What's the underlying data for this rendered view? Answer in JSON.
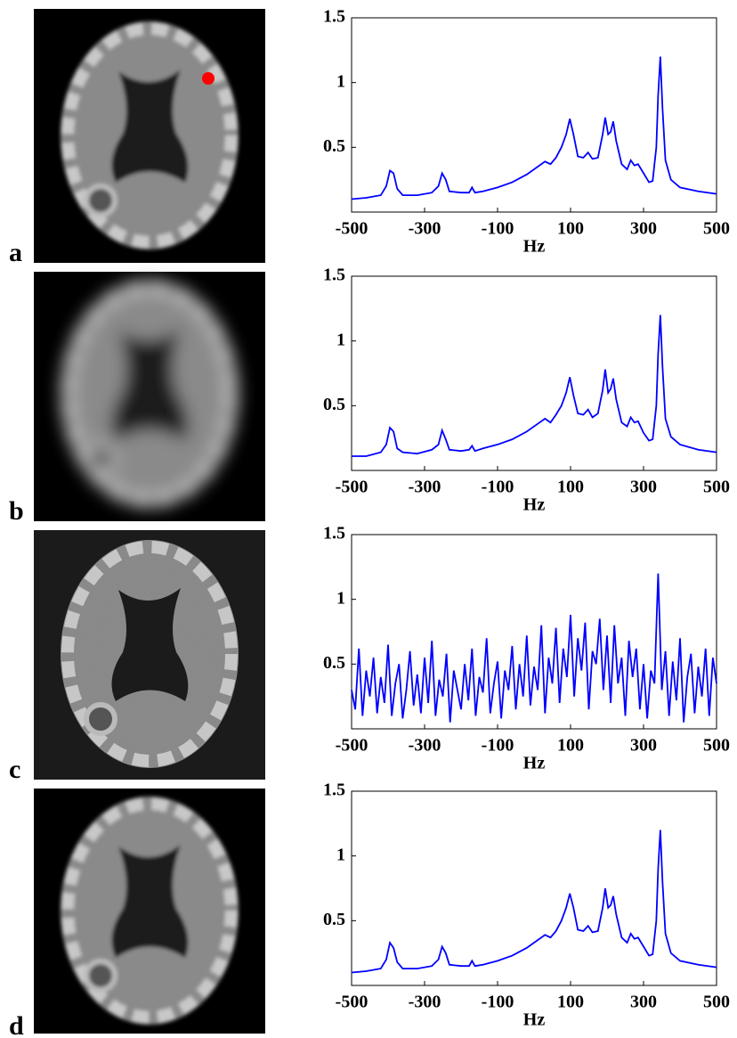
{
  "chart_data": [
    {
      "type": "line",
      "panel_label": "a",
      "xlabel": "Hz",
      "color": "#0000ff",
      "x": [
        -500,
        -460,
        -420,
        -405,
        -395,
        -385,
        -375,
        -360,
        -320,
        -280,
        -262,
        -252,
        -242,
        -232,
        -200,
        -178,
        -170,
        -162,
        -140,
        -100,
        -60,
        -20,
        10,
        30,
        45,
        60,
        75,
        88,
        98,
        108,
        120,
        135,
        148,
        160,
        175,
        188,
        195,
        203,
        210,
        217,
        225,
        240,
        255,
        265,
        275,
        285,
        300,
        315,
        325,
        335,
        340,
        346,
        352,
        360,
        375,
        400,
        450,
        500
      ],
      "values": [
        0.1,
        0.11,
        0.13,
        0.2,
        0.32,
        0.3,
        0.18,
        0.13,
        0.13,
        0.15,
        0.2,
        0.3,
        0.25,
        0.16,
        0.15,
        0.15,
        0.19,
        0.15,
        0.16,
        0.19,
        0.23,
        0.29,
        0.35,
        0.39,
        0.37,
        0.42,
        0.5,
        0.6,
        0.72,
        0.6,
        0.43,
        0.42,
        0.46,
        0.41,
        0.42,
        0.6,
        0.73,
        0.6,
        0.62,
        0.7,
        0.55,
        0.37,
        0.33,
        0.4,
        0.36,
        0.37,
        0.3,
        0.23,
        0.24,
        0.5,
        0.9,
        1.2,
        0.8,
        0.4,
        0.25,
        0.19,
        0.16,
        0.14
      ],
      "xlim": [
        -500,
        500
      ],
      "ylim": [
        0,
        1.5
      ],
      "xticks": [
        -500,
        -300,
        -100,
        100,
        300,
        500
      ],
      "yticks": [
        0.5,
        1,
        1.5
      ]
    },
    {
      "type": "line",
      "panel_label": "b",
      "xlabel": "Hz",
      "color": "#0000ff",
      "x": [
        -500,
        -460,
        -420,
        -405,
        -395,
        -385,
        -375,
        -360,
        -320,
        -280,
        -262,
        -252,
        -242,
        -232,
        -200,
        -178,
        -170,
        -162,
        -140,
        -100,
        -60,
        -20,
        10,
        30,
        45,
        60,
        75,
        88,
        98,
        108,
        120,
        135,
        148,
        160,
        175,
        188,
        195,
        203,
        210,
        217,
        225,
        240,
        255,
        265,
        275,
        285,
        300,
        315,
        325,
        335,
        340,
        346,
        352,
        360,
        375,
        400,
        450,
        500
      ],
      "values": [
        0.11,
        0.11,
        0.14,
        0.2,
        0.33,
        0.3,
        0.17,
        0.14,
        0.13,
        0.16,
        0.2,
        0.31,
        0.24,
        0.16,
        0.15,
        0.16,
        0.19,
        0.15,
        0.17,
        0.2,
        0.24,
        0.3,
        0.36,
        0.4,
        0.37,
        0.43,
        0.5,
        0.6,
        0.72,
        0.58,
        0.44,
        0.43,
        0.47,
        0.41,
        0.44,
        0.62,
        0.78,
        0.6,
        0.63,
        0.71,
        0.55,
        0.37,
        0.34,
        0.41,
        0.37,
        0.38,
        0.29,
        0.23,
        0.24,
        0.5,
        0.9,
        1.2,
        0.8,
        0.4,
        0.26,
        0.2,
        0.16,
        0.14
      ],
      "xlim": [
        -500,
        500
      ],
      "ylim": [
        0,
        1.5
      ],
      "xticks": [
        -500,
        -300,
        -100,
        100,
        300,
        500
      ],
      "yticks": [
        0.5,
        1,
        1.5
      ]
    },
    {
      "type": "line",
      "panel_label": "c",
      "xlabel": "Hz",
      "color": "#0000ff",
      "x": [
        -500,
        -490,
        -480,
        -470,
        -460,
        -450,
        -440,
        -430,
        -420,
        -410,
        -400,
        -390,
        -380,
        -370,
        -360,
        -350,
        -340,
        -330,
        -320,
        -310,
        -300,
        -290,
        -280,
        -270,
        -260,
        -250,
        -240,
        -230,
        -220,
        -210,
        -200,
        -190,
        -180,
        -170,
        -160,
        -150,
        -140,
        -130,
        -120,
        -110,
        -100,
        -90,
        -80,
        -70,
        -60,
        -50,
        -40,
        -30,
        -20,
        -10,
        0,
        10,
        20,
        30,
        40,
        50,
        60,
        70,
        80,
        90,
        100,
        110,
        120,
        130,
        140,
        150,
        160,
        170,
        180,
        190,
        200,
        210,
        220,
        230,
        240,
        250,
        260,
        270,
        280,
        290,
        300,
        310,
        320,
        330,
        340,
        350,
        360,
        370,
        380,
        390,
        400,
        410,
        420,
        430,
        440,
        450,
        460,
        470,
        480,
        490,
        500
      ],
      "values": [
        0.3,
        0.15,
        0.62,
        0.1,
        0.45,
        0.25,
        0.55,
        0.12,
        0.4,
        0.2,
        0.65,
        0.1,
        0.35,
        0.5,
        0.08,
        0.3,
        0.6,
        0.18,
        0.42,
        0.12,
        0.55,
        0.2,
        0.68,
        0.1,
        0.38,
        0.25,
        0.58,
        0.05,
        0.45,
        0.3,
        0.15,
        0.5,
        0.22,
        0.62,
        0.1,
        0.4,
        0.28,
        0.7,
        0.12,
        0.35,
        0.52,
        0.08,
        0.45,
        0.3,
        0.64,
        0.15,
        0.5,
        0.25,
        0.72,
        0.18,
        0.48,
        0.3,
        0.8,
        0.12,
        0.55,
        0.35,
        0.78,
        0.2,
        0.62,
        0.4,
        0.88,
        0.25,
        0.7,
        0.45,
        0.82,
        0.15,
        0.6,
        0.5,
        0.85,
        0.3,
        0.72,
        0.2,
        0.8,
        0.35,
        0.55,
        0.1,
        0.68,
        0.4,
        0.62,
        0.15,
        0.5,
        0.08,
        0.45,
        0.35,
        1.2,
        0.3,
        0.6,
        0.1,
        0.52,
        0.22,
        0.7,
        0.05,
        0.4,
        0.58,
        0.12,
        0.48,
        0.25,
        0.62,
        0.1,
        0.55,
        0.35
      ],
      "xlim": [
        -500,
        500
      ],
      "ylim": [
        0,
        1.5
      ],
      "xticks": [
        -500,
        -300,
        -100,
        100,
        300,
        500
      ],
      "yticks": [
        0.5,
        1,
        1.5
      ]
    },
    {
      "type": "line",
      "panel_label": "d",
      "xlabel": "Hz",
      "color": "#0000ff",
      "x": [
        -500,
        -460,
        -420,
        -405,
        -395,
        -385,
        -375,
        -360,
        -320,
        -280,
        -262,
        -252,
        -242,
        -232,
        -200,
        -178,
        -170,
        -162,
        -140,
        -100,
        -60,
        -20,
        10,
        30,
        45,
        60,
        75,
        88,
        98,
        108,
        120,
        135,
        148,
        160,
        175,
        188,
        195,
        203,
        210,
        217,
        225,
        240,
        255,
        265,
        275,
        285,
        300,
        315,
        325,
        335,
        340,
        346,
        352,
        360,
        375,
        400,
        450,
        500
      ],
      "values": [
        0.1,
        0.11,
        0.13,
        0.2,
        0.33,
        0.29,
        0.18,
        0.13,
        0.13,
        0.15,
        0.2,
        0.3,
        0.25,
        0.16,
        0.15,
        0.15,
        0.19,
        0.15,
        0.16,
        0.19,
        0.23,
        0.29,
        0.35,
        0.39,
        0.37,
        0.42,
        0.5,
        0.6,
        0.71,
        0.6,
        0.43,
        0.42,
        0.46,
        0.41,
        0.42,
        0.6,
        0.75,
        0.6,
        0.62,
        0.69,
        0.55,
        0.37,
        0.33,
        0.4,
        0.36,
        0.37,
        0.3,
        0.23,
        0.24,
        0.5,
        0.9,
        1.2,
        0.8,
        0.4,
        0.25,
        0.19,
        0.16,
        0.14
      ],
      "xlim": [
        -500,
        500
      ],
      "ylim": [
        0,
        1.5
      ],
      "xticks": [
        -500,
        -300,
        -100,
        100,
        300,
        500
      ],
      "yticks": [
        0.5,
        1,
        1.5
      ]
    }
  ]
}
